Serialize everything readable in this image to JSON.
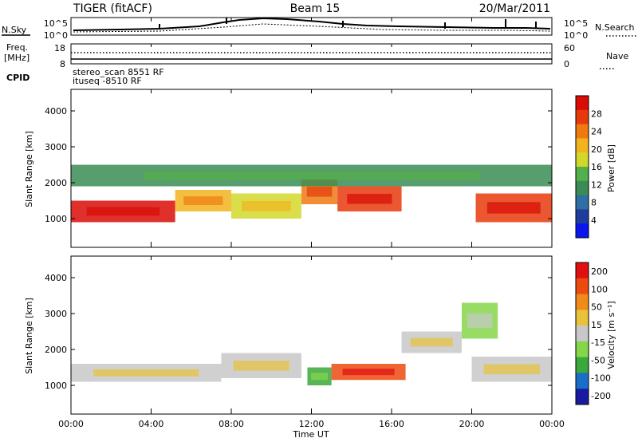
{
  "header": {
    "radar": "TIGER (fitACF)",
    "beam": "Beam 15",
    "date": "20/Mar/2011"
  },
  "noise_panel": {
    "left_label": "N.Sky",
    "left_ticks": [
      "10^5",
      "10^0"
    ],
    "right_ticks": [
      "10^5",
      "10^0"
    ],
    "right_label": "N.Search"
  },
  "freq_panel": {
    "left_label_line1": "Freq.",
    "left_label_line2": "[MHz]",
    "left_ticks": [
      "18",
      "8"
    ],
    "right_ticks": [
      "60",
      "0"
    ],
    "right_label": "Nave"
  },
  "cpid_panel": {
    "label": "CPID",
    "lines": [
      "stereo_scan 8551 RF",
      "ituseq -8510 RF"
    ]
  },
  "time_axis": {
    "label": "Time UT",
    "ticks": [
      "00:00",
      "04:00",
      "08:00",
      "12:00",
      "16:00",
      "20:00",
      "00:00"
    ]
  },
  "chart_data": [
    {
      "type": "heatmap",
      "parameter": "Power",
      "ylabel": "Slant Range [km]",
      "xlabel": "Time UT",
      "yticks": [
        1000,
        2000,
        3000,
        4000
      ],
      "ylim": [
        200,
        4600
      ],
      "xlim": [
        "00:00",
        "24:00"
      ],
      "colorbar": {
        "label": "Power [dB]",
        "ticks": [
          "4",
          "8",
          "12",
          "16",
          "20",
          "24",
          "28"
        ],
        "colors": [
          "#0a16f0",
          "#1f3d9c",
          "#2e6fa6",
          "#3a8c54",
          "#52b04a",
          "#d2d82a",
          "#f2b41e",
          "#ef7a12",
          "#e63a0c",
          "#d90c06"
        ]
      },
      "features": [
        {
          "time_start": 0.0,
          "time_end": 5.2,
          "range_lo": 900,
          "range_hi": 1500,
          "level": 9
        },
        {
          "time_start": 5.2,
          "time_end": 8.0,
          "range_lo": 1200,
          "range_hi": 1800,
          "level": 6
        },
        {
          "time_start": 8.0,
          "time_end": 11.5,
          "range_lo": 1000,
          "range_hi": 1700,
          "level": 5
        },
        {
          "time_start": 11.5,
          "time_end": 13.3,
          "range_lo": 1400,
          "range_hi": 2100,
          "level": 7
        },
        {
          "time_start": 13.3,
          "time_end": 16.5,
          "range_lo": 1200,
          "range_hi": 1900,
          "level": 8
        },
        {
          "time_start": 20.2,
          "time_end": 24.0,
          "range_lo": 900,
          "range_hi": 1700,
          "level": 8
        },
        {
          "time_start": 0.0,
          "time_end": 24.0,
          "range_lo": 1900,
          "range_hi": 2500,
          "level": 3
        }
      ]
    },
    {
      "type": "heatmap",
      "parameter": "Velocity",
      "ylabel": "Slant Range [km]",
      "xlabel": "Time UT",
      "yticks": [
        1000,
        2000,
        3000,
        4000
      ],
      "ylim": [
        200,
        4600
      ],
      "xlim": [
        "00:00",
        "24:00"
      ],
      "colorbar": {
        "label": "Velocity [m s⁻¹]",
        "ticks": [
          "200",
          "100",
          "50",
          "15",
          "-15",
          "-50",
          "-100",
          "-200"
        ],
        "colors": [
          "#1a1aa0",
          "#1a6ec8",
          "#3aa83a",
          "#86d64a",
          "#c8c8c8",
          "#e8c23a",
          "#f08a1a",
          "#ec4a10",
          "#e01010"
        ]
      },
      "features": [
        {
          "time_start": 0.0,
          "time_end": 7.5,
          "range_lo": 1100,
          "range_hi": 1600,
          "level": 4
        },
        {
          "time_start": 7.5,
          "time_end": 11.5,
          "range_lo": 1200,
          "range_hi": 1900,
          "level": 4
        },
        {
          "time_start": 11.8,
          "time_end": 13.0,
          "range_lo": 1000,
          "range_hi": 1500,
          "level": 2
        },
        {
          "time_start": 13.0,
          "time_end": 16.7,
          "range_lo": 1150,
          "range_hi": 1600,
          "level": 7
        },
        {
          "time_start": 16.5,
          "time_end": 19.5,
          "range_lo": 1900,
          "range_hi": 2500,
          "level": 4
        },
        {
          "time_start": 20.0,
          "time_end": 24.0,
          "range_lo": 1100,
          "range_hi": 1800,
          "level": 4
        },
        {
          "time_start": 19.5,
          "time_end": 21.3,
          "range_lo": 2300,
          "range_hi": 3300,
          "level": 3
        }
      ]
    }
  ]
}
